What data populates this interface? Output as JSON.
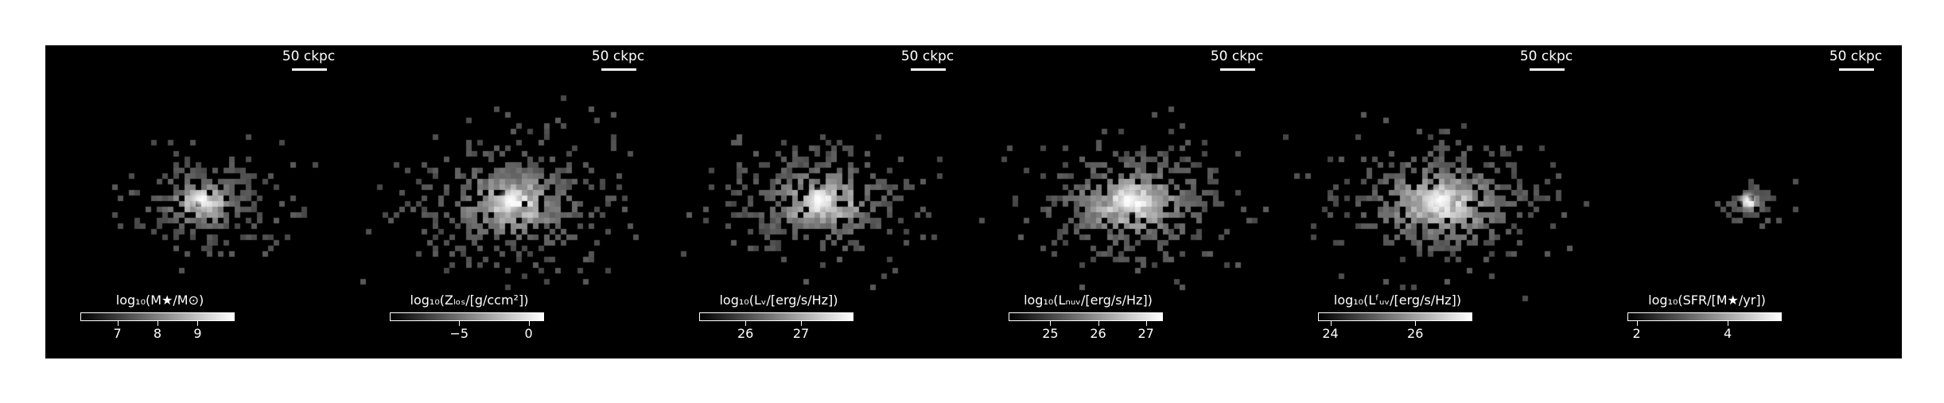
{
  "panels": [
    {
      "scalebar": "50 ckpc",
      "cbar_label": "log₁₀(M★/M⊙)",
      "ticks": [
        "7",
        "8",
        "9"
      ],
      "tick_frac": [
        0.24,
        0.5,
        0.76
      ],
      "spread": 1.0,
      "blob": 0.55
    },
    {
      "scalebar": "50 ckpc",
      "cbar_label": "log₁₀(Zₗₒₛ/[g/ccm²])",
      "ticks": [
        "−5",
        "0"
      ],
      "tick_frac": [
        0.45,
        0.9
      ],
      "spread": 1.25,
      "blob": 0.8
    },
    {
      "scalebar": "50 ckpc",
      "cbar_label": "log₁₀(Lᵥ/[erg/s/Hz])",
      "ticks": [
        "26",
        "27"
      ],
      "tick_frac": [
        0.3,
        0.66
      ],
      "spread": 1.15,
      "blob": 0.9
    },
    {
      "scalebar": "50 ckpc",
      "cbar_label": "log₁₀(Lₙᵤᵥ/[erg/s/Hz])",
      "ticks": [
        "25",
        "26",
        "27"
      ],
      "tick_frac": [
        0.27,
        0.58,
        0.89
      ],
      "spread": 1.2,
      "blob": 1.0
    },
    {
      "scalebar": "50 ckpc",
      "cbar_label": "log₁₀(Lᶠᵤᵥ/[erg/s/Hz])",
      "ticks": [
        "24",
        "26"
      ],
      "tick_frac": [
        0.08,
        0.63
      ],
      "spread": 1.25,
      "blob": 1.0
    },
    {
      "scalebar": "50 ckpc",
      "cbar_label": "log₁₀(SFR/[M★/yr])",
      "ticks": [
        "2",
        "4"
      ],
      "tick_frac": [
        0.06,
        0.65
      ],
      "spread": 0.4,
      "blob": 0.4
    }
  ]
}
